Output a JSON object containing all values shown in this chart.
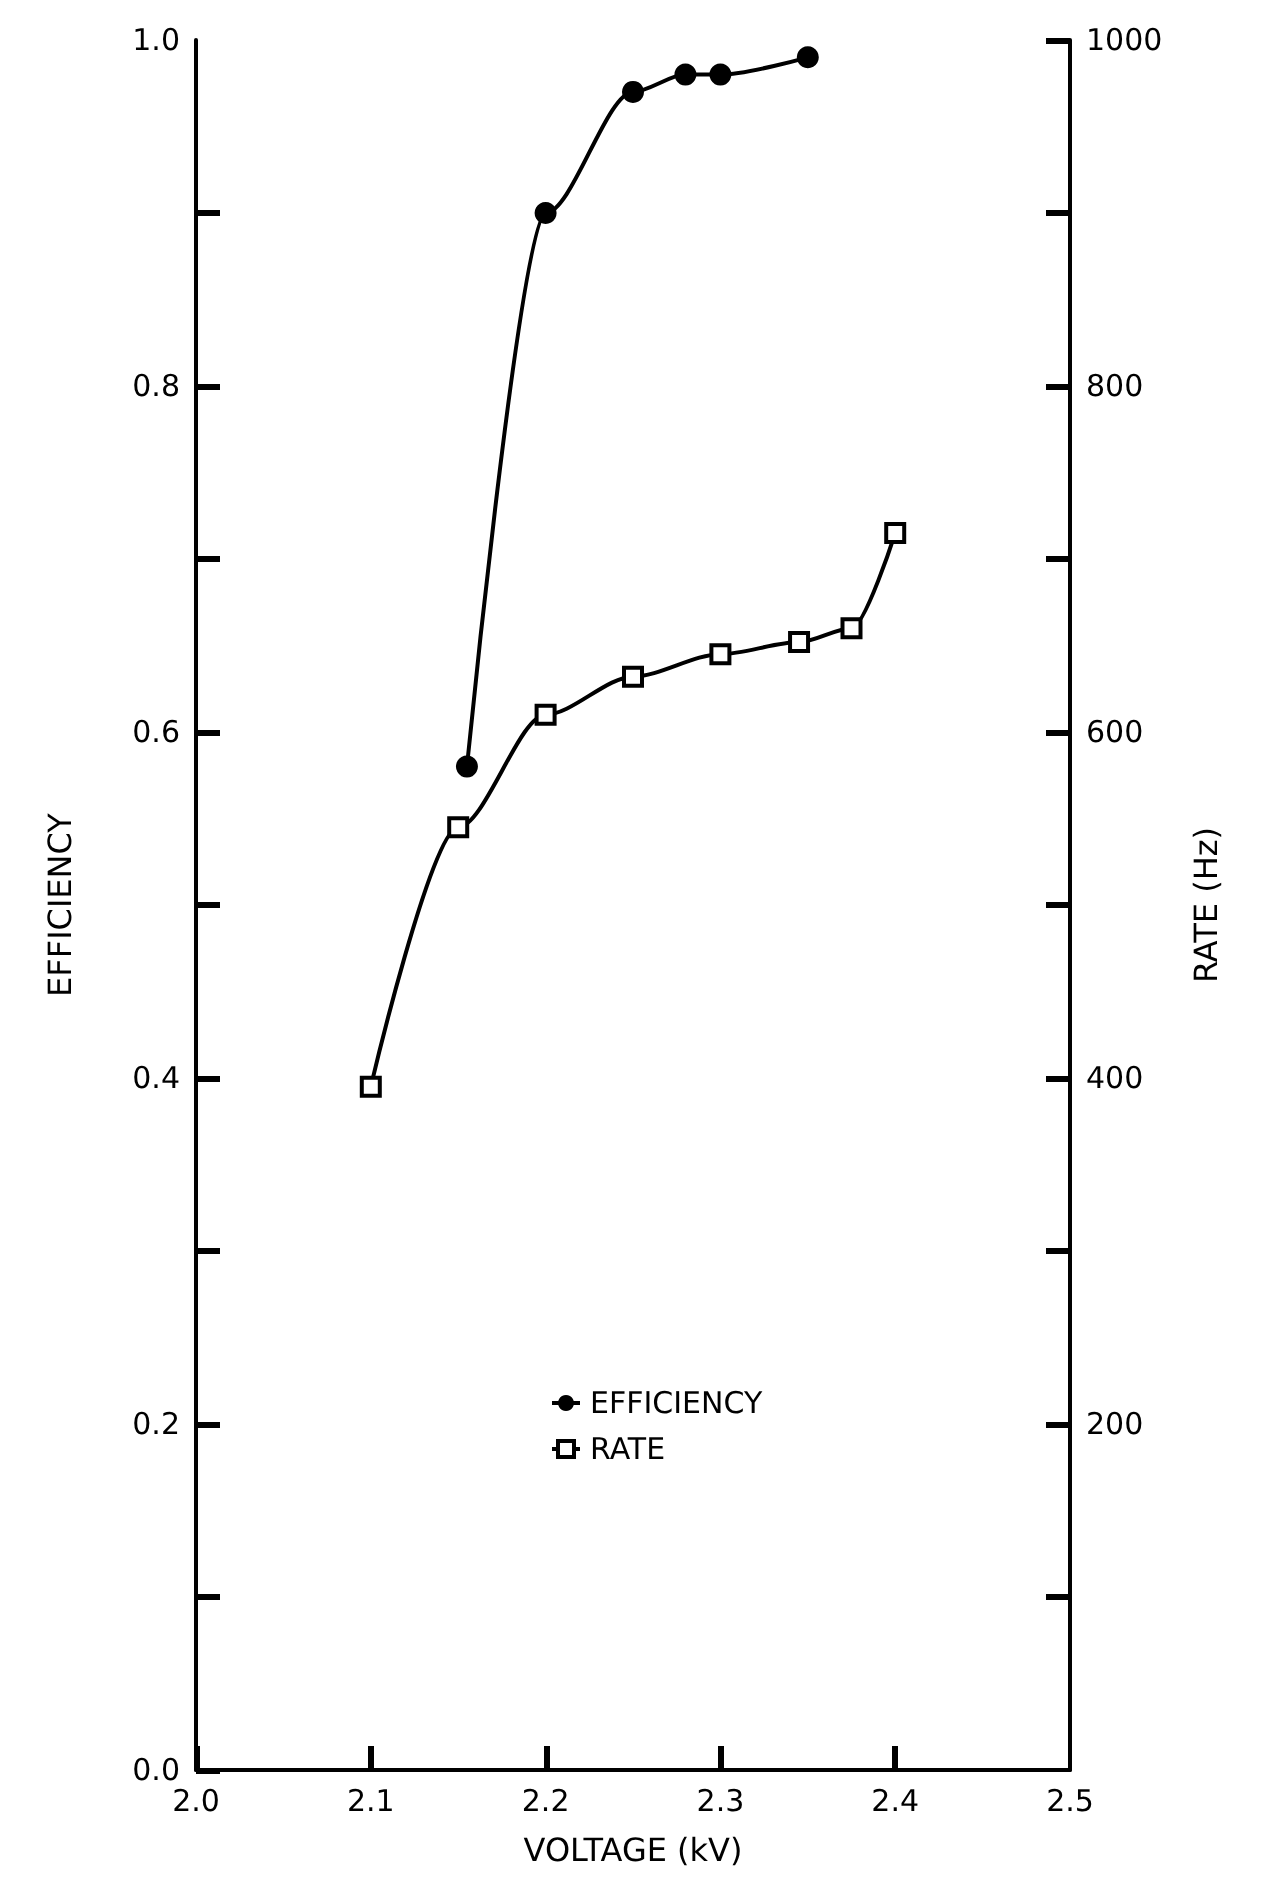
{
  "chart_data": {
    "type": "line",
    "xlabel": "VOLTAGE (kV)",
    "ylabel": "EFFICIENCY",
    "y2label": "RATE (Hz)",
    "xlim": [
      2.0,
      2.5
    ],
    "xticks": [
      {
        "value": 2.0,
        "label": "2.0"
      },
      2.1,
      2.2,
      2.3,
      2.4,
      2.5
    ],
    "ylim": [
      0,
      1.0
    ],
    "yticks": [
      {
        "value": 0,
        "label": "0.0"
      },
      {
        "value": 0.1,
        "label": null
      },
      0.2,
      {
        "value": 0.3,
        "label": null
      },
      0.4,
      {
        "value": 0.5,
        "label": null
      },
      0.6,
      {
        "value": 0.7,
        "label": null
      },
      0.8,
      {
        "value": 0.9,
        "label": null
      },
      {
        "value": 1.0,
        "label": "1.0"
      }
    ],
    "y2lim": [
      0,
      1000
    ],
    "y2ticks": [
      {
        "value": 100,
        "label": null
      },
      200,
      {
        "value": 300,
        "label": null
      },
      400,
      {
        "value": 500,
        "label": null
      },
      600,
      {
        "value": 700,
        "label": null
      },
      800,
      {
        "value": 900,
        "label": null
      },
      1000
    ],
    "legend": "bottom",
    "grid": false,
    "series": [
      {
        "name": "EFFICIENCY",
        "color": "#000000",
        "marker": "circle",
        "x": [
          2.155,
          2.2,
          2.25,
          2.28,
          2.3,
          2.35
        ],
        "values": [
          0.58,
          0.9,
          0.97,
          0.98,
          0.98,
          0.99
        ]
      },
      {
        "name": "RATE",
        "color": "#000000",
        "marker": "square",
        "axis": "y2",
        "x": [
          2.1,
          2.15,
          2.2,
          2.25,
          2.3,
          2.345,
          2.375,
          2.4
        ],
        "values": [
          395,
          545,
          610,
          632,
          645,
          652,
          660,
          715
        ]
      }
    ]
  }
}
